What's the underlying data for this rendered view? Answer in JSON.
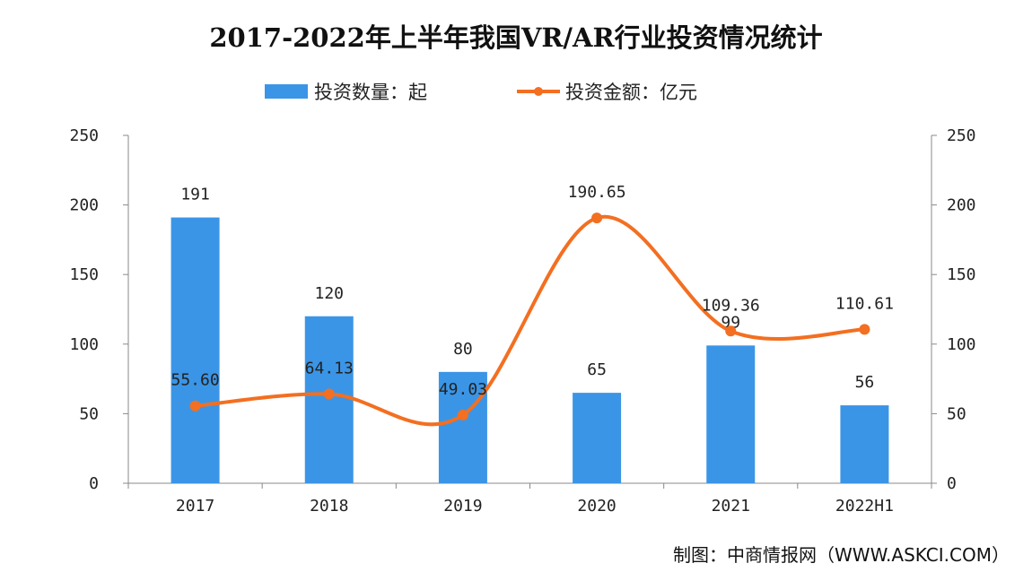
{
  "chart_data": {
    "type": "bar+line",
    "title": "2017-2022年上半年我国VR/AR行业投资情况统计",
    "categories": [
      "2017",
      "2018",
      "2019",
      "2020",
      "2021",
      "2022H1"
    ],
    "series": [
      {
        "name": "投资数量：起",
        "type": "bar",
        "axis": "left",
        "color": "#3b95e6",
        "values": [
          191,
          120,
          80,
          65,
          99,
          56
        ],
        "labels": [
          "191",
          "120",
          "80",
          "65",
          "99",
          "56"
        ]
      },
      {
        "name": "投资金额：亿元",
        "type": "line",
        "axis": "right",
        "color": "#f36f21",
        "smooth": true,
        "values": [
          55.6,
          64.13,
          49.03,
          190.65,
          109.36,
          110.61
        ],
        "labels": [
          "55.60",
          "64.13",
          "49.03",
          "190.65",
          "109.36",
          "110.61"
        ]
      }
    ],
    "y_left": {
      "min": 0,
      "max": 250,
      "ticks": [
        "0",
        "50",
        "100",
        "150",
        "200",
        "250"
      ]
    },
    "y_right": {
      "min": 0,
      "max": 250,
      "ticks": [
        "0",
        "50",
        "100",
        "150",
        "200",
        "250"
      ]
    },
    "grid": false,
    "legend_position": "top"
  },
  "source": "制图：中商情报网（WWW.ASKCI.COM）"
}
